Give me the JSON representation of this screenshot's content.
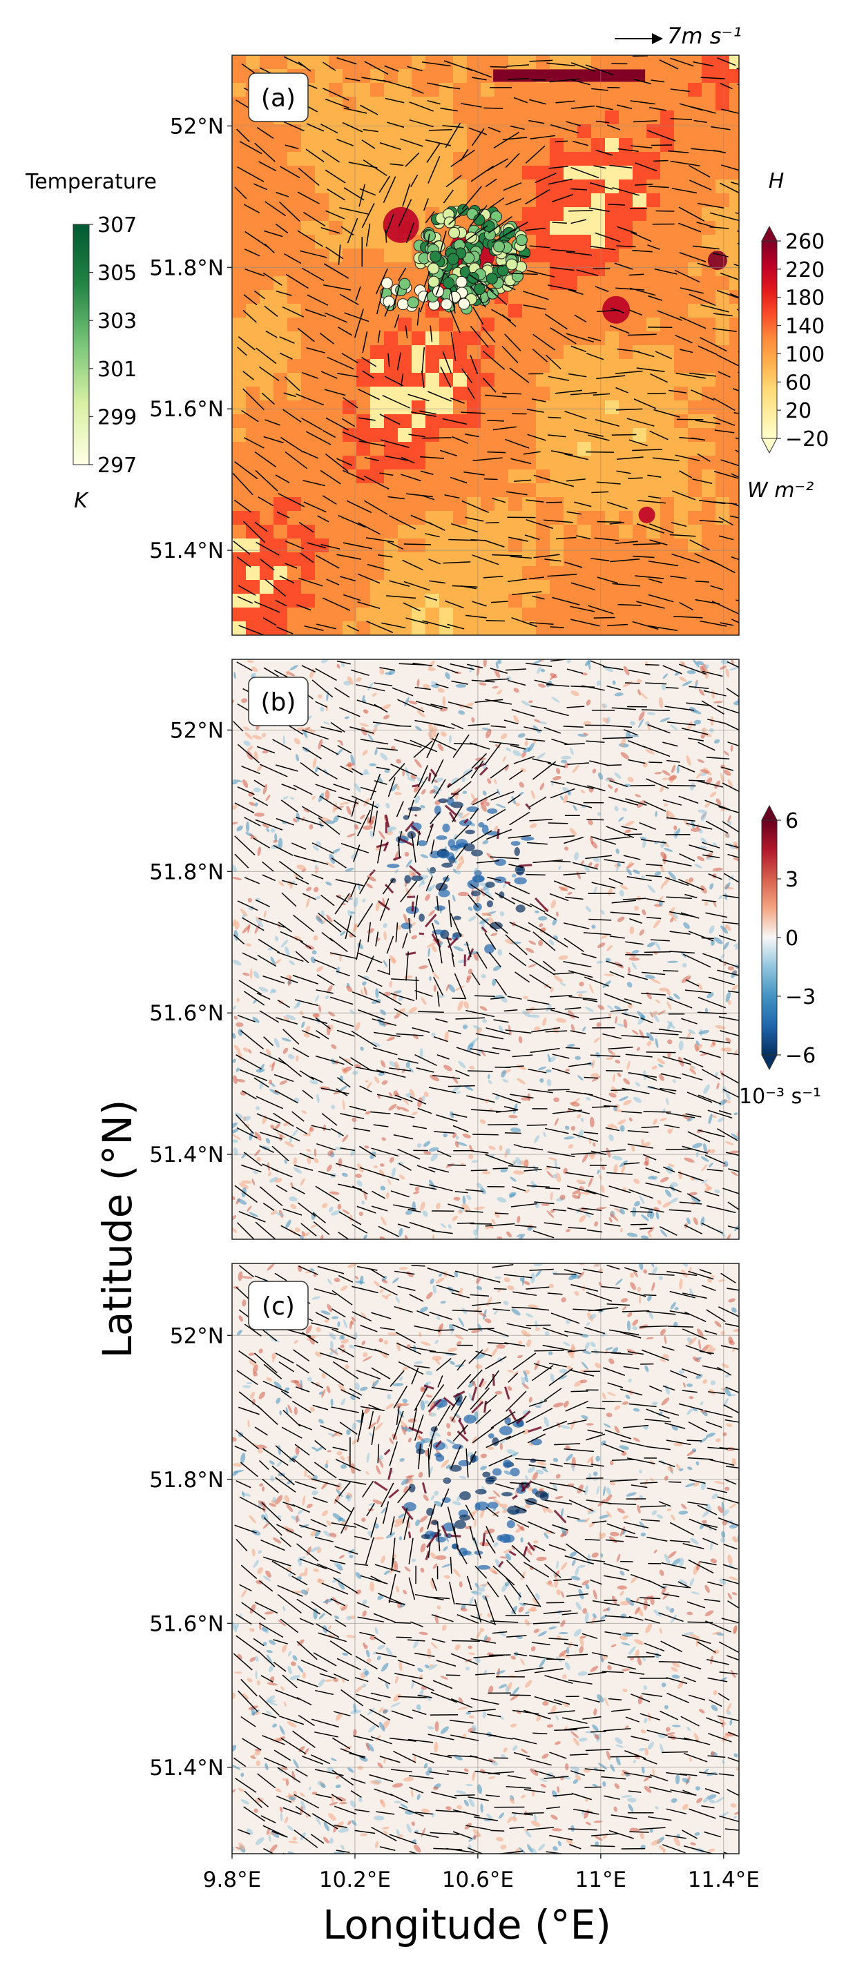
{
  "chart_data": [
    {
      "type": "heatmap",
      "panel_label": "(a)",
      "variable_label": "H",
      "colorbar": {
        "ticks": [
          "260",
          "220",
          "180",
          "140",
          "100",
          "60",
          "20",
          "−20"
        ],
        "values": [
          260,
          220,
          180,
          140,
          100,
          60,
          20,
          -20
        ],
        "range": [
          -20,
          260
        ],
        "units": "W m⁻²",
        "extend": "both",
        "colors": [
          "#ffffcc",
          "#ffeda0",
          "#fed976",
          "#feb24c",
          "#fd8d3c",
          "#fc4e2a",
          "#e31a1c",
          "#bd0026",
          "#800026"
        ]
      },
      "scatter_colorbar": {
        "title": "Temperature",
        "ticks": [
          "307",
          "305",
          "303",
          "301",
          "299",
          "297"
        ],
        "values": [
          307,
          305,
          303,
          301,
          299,
          297
        ],
        "range": [
          297,
          307
        ],
        "units": "K",
        "colors": [
          "#ffffe5",
          "#d9f0a3",
          "#78c679",
          "#238443",
          "#005a32"
        ]
      },
      "vector_key": "7m s⁻¹",
      "ylim": [
        51.28,
        52.1
      ],
      "xlim": [
        9.8,
        11.45
      ],
      "yticks": [
        "52°N",
        "51.8°N",
        "51.6°N",
        "51.4°N"
      ],
      "ytick_values": [
        52.0,
        51.8,
        51.6,
        51.4
      ]
    },
    {
      "type": "heatmap",
      "panel_label": "(b)",
      "colorbar": {
        "ticks": [
          "6",
          "3",
          "0",
          "−3",
          "−6"
        ],
        "values": [
          6,
          3,
          0,
          -3,
          -6
        ],
        "range": [
          -6,
          6
        ],
        "units": "10⁻³ s⁻¹",
        "extend": "both",
        "colors": [
          "#053061",
          "#2166ac",
          "#4393c3",
          "#92c5de",
          "#f7f7f7",
          "#f4a582",
          "#d6604d",
          "#b2182b",
          "#67001f"
        ]
      },
      "ylim": [
        51.28,
        52.1
      ],
      "xlim": [
        9.8,
        11.45
      ],
      "yticks": [
        "52°N",
        "51.8°N",
        "51.6°N",
        "51.4°N"
      ],
      "ytick_values": [
        52.0,
        51.8,
        51.6,
        51.4
      ]
    },
    {
      "type": "heatmap",
      "panel_label": "(c)",
      "ylim": [
        51.28,
        52.1
      ],
      "xlim": [
        9.8,
        11.45
      ],
      "yticks": [
        "52°N",
        "51.8°N",
        "51.6°N",
        "51.4°N"
      ],
      "ytick_values": [
        52.0,
        51.8,
        51.6,
        51.4
      ],
      "xticks": [
        "9.8°E",
        "10.2°E",
        "10.6°E",
        "11°E",
        "11.4°E"
      ],
      "xtick_values": [
        9.8,
        10.2,
        10.6,
        11.0,
        11.4
      ]
    }
  ],
  "figure": {
    "ylabel": "Latitude (°N)",
    "xlabel": "Longitude (°E)"
  }
}
